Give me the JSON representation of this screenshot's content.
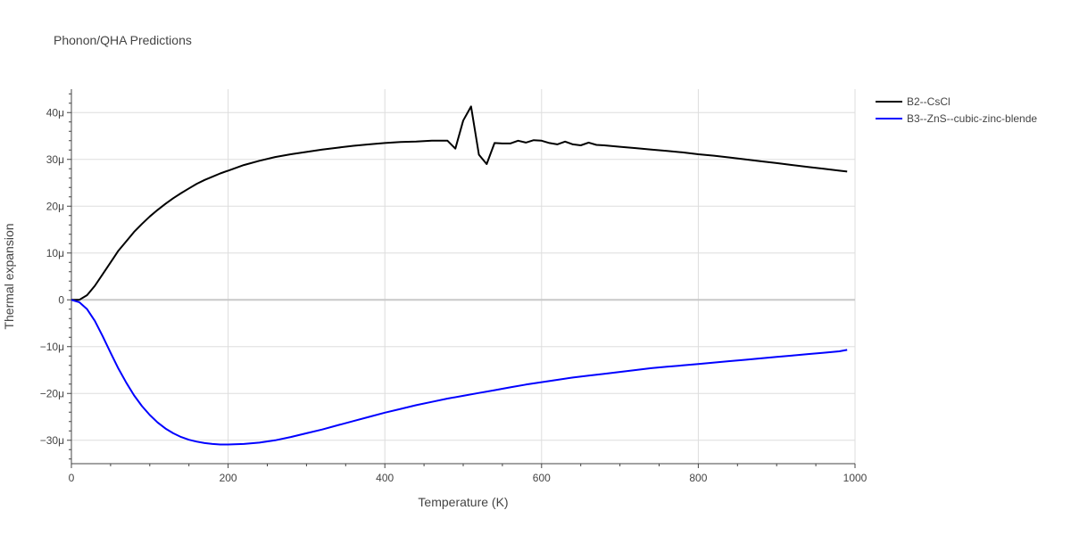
{
  "chart_data": {
    "type": "line",
    "title": "Phonon/QHA Predictions",
    "xlabel": "Temperature (K)",
    "ylabel": "Thermal expansion",
    "xlim": [
      0,
      1000
    ],
    "ylim": [
      -35,
      45
    ],
    "y_unit_suffix": "μ",
    "x_ticks": [
      0,
      200,
      400,
      600,
      800,
      1000
    ],
    "y_ticks": [
      -30,
      -20,
      -10,
      0,
      10,
      20,
      30,
      40
    ],
    "y_tick_labels": [
      "−30μ",
      "−20μ",
      "−10μ",
      "0",
      "10μ",
      "20μ",
      "30μ",
      "40μ"
    ],
    "grid": true,
    "legend_position": "top-right",
    "series": [
      {
        "name": "B2--CsCl",
        "color": "#000000",
        "x": [
          0,
          10,
          20,
          30,
          40,
          50,
          60,
          70,
          80,
          90,
          100,
          110,
          120,
          130,
          140,
          150,
          160,
          170,
          180,
          190,
          200,
          220,
          240,
          260,
          280,
          300,
          320,
          340,
          360,
          380,
          400,
          420,
          440,
          460,
          480,
          490,
          500,
          510,
          520,
          530,
          540,
          550,
          560,
          570,
          580,
          590,
          600,
          610,
          620,
          630,
          640,
          650,
          660,
          670,
          680,
          700,
          720,
          740,
          760,
          780,
          800,
          820,
          840,
          860,
          880,
          900,
          920,
          940,
          960,
          980,
          990
        ],
        "y": [
          0,
          0,
          1,
          3,
          5.5,
          8,
          10.5,
          12.5,
          14.5,
          16.2,
          17.8,
          19.2,
          20.5,
          21.7,
          22.8,
          23.8,
          24.8,
          25.6,
          26.3,
          27,
          27.6,
          28.8,
          29.7,
          30.5,
          31.1,
          31.6,
          32.1,
          32.5,
          32.9,
          33.2,
          33.5,
          33.7,
          33.8,
          34,
          34,
          32.3,
          38.3,
          41.3,
          31,
          29,
          33.5,
          33.4,
          33.4,
          34,
          33.6,
          34.1,
          34,
          33.5,
          33.2,
          33.8,
          33.2,
          33,
          33.6,
          33.1,
          33,
          32.7,
          32.4,
          32.1,
          31.8,
          31.5,
          31.1,
          30.8,
          30.4,
          30,
          29.6,
          29.2,
          28.8,
          28.4,
          28,
          27.6,
          27.4
        ]
      },
      {
        "name": "B3--ZnS--cubic-zinc-blende",
        "color": "#0000ff",
        "x": [
          0,
          10,
          20,
          30,
          40,
          50,
          60,
          70,
          80,
          90,
          100,
          110,
          120,
          130,
          140,
          150,
          160,
          170,
          180,
          190,
          200,
          220,
          240,
          260,
          280,
          300,
          320,
          340,
          360,
          380,
          400,
          420,
          440,
          460,
          480,
          500,
          520,
          540,
          560,
          580,
          600,
          620,
          640,
          660,
          680,
          700,
          720,
          740,
          760,
          780,
          800,
          820,
          840,
          860,
          880,
          900,
          920,
          940,
          960,
          980,
          990
        ],
        "y": [
          0,
          -0.5,
          -2,
          -4.5,
          -7.8,
          -11.3,
          -14.7,
          -17.7,
          -20.4,
          -22.7,
          -24.6,
          -26.2,
          -27.5,
          -28.5,
          -29.3,
          -29.9,
          -30.3,
          -30.6,
          -30.8,
          -30.9,
          -30.9,
          -30.8,
          -30.5,
          -30,
          -29.3,
          -28.5,
          -27.7,
          -26.8,
          -25.9,
          -25,
          -24.1,
          -23.3,
          -22.5,
          -21.8,
          -21.1,
          -20.5,
          -19.9,
          -19.3,
          -18.7,
          -18.1,
          -17.6,
          -17.1,
          -16.6,
          -16.2,
          -15.8,
          -15.4,
          -15,
          -14.6,
          -14.3,
          -14,
          -13.7,
          -13.4,
          -13.1,
          -12.8,
          -12.5,
          -12.2,
          -11.9,
          -11.6,
          -11.3,
          -11,
          -10.7
        ]
      }
    ]
  }
}
